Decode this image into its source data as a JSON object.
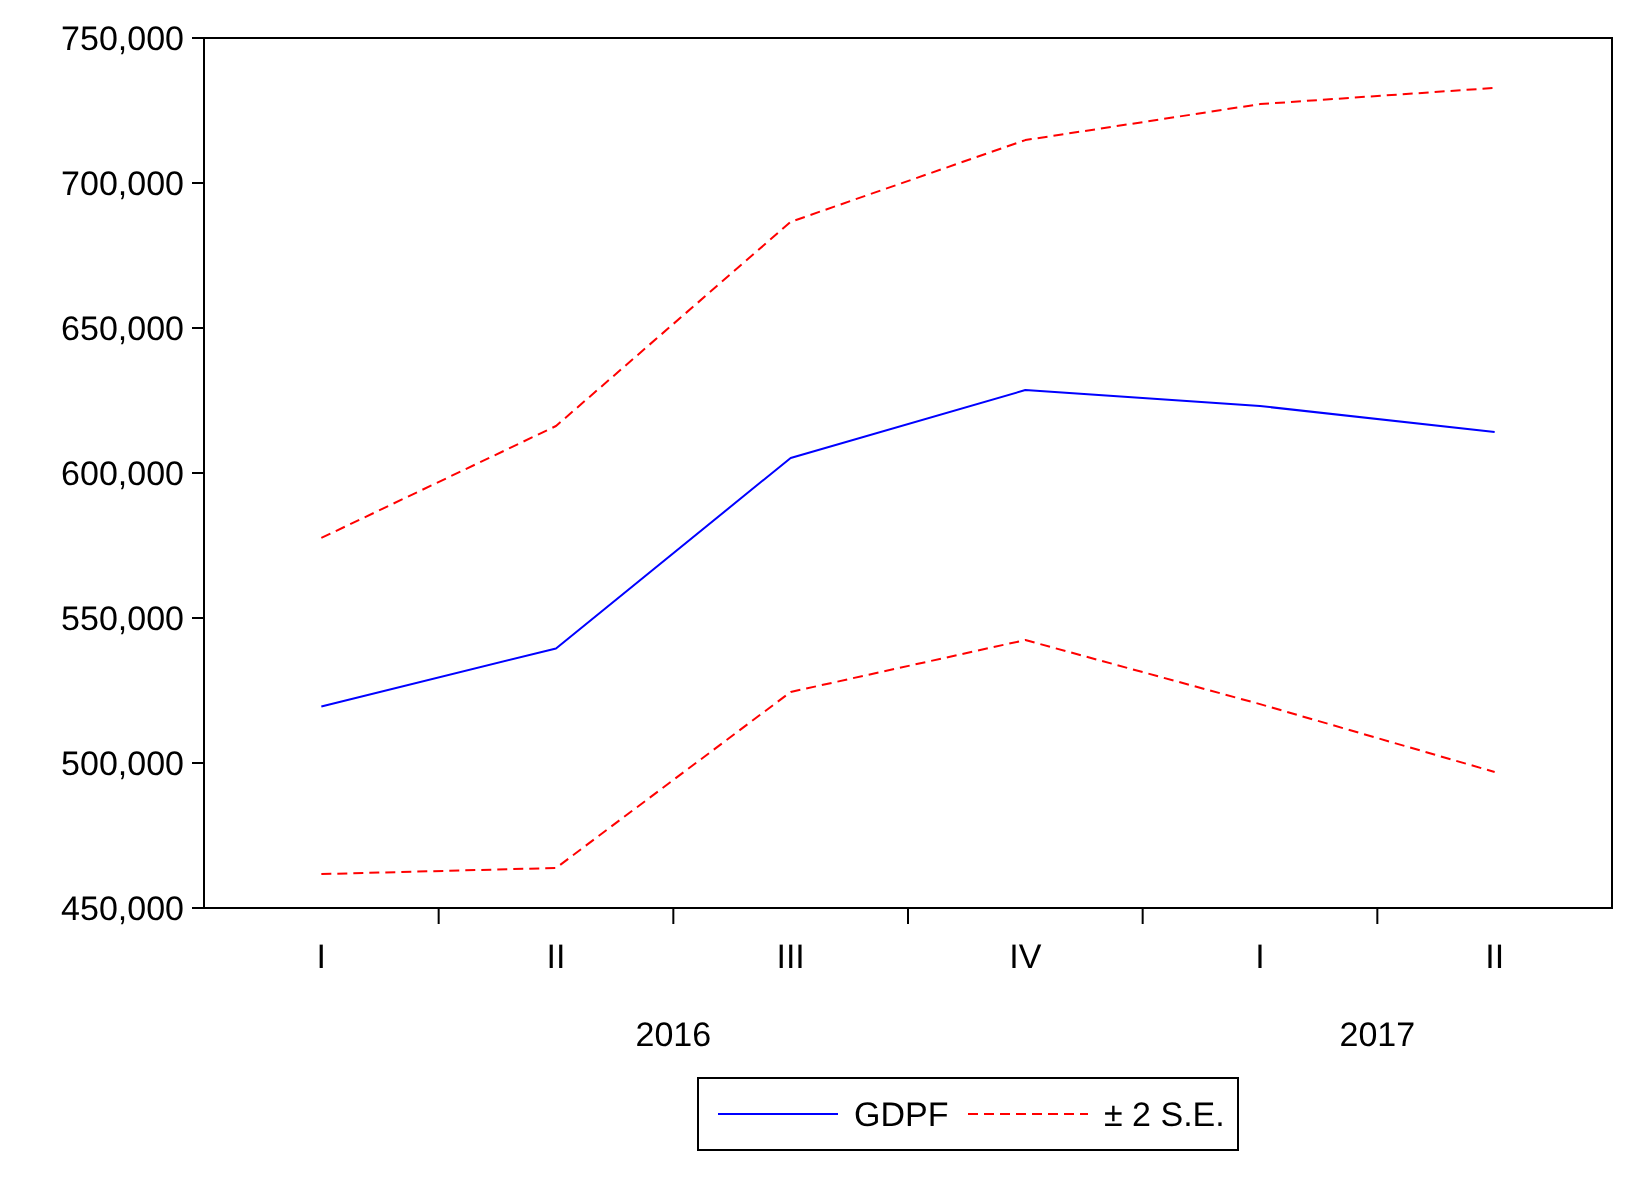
{
  "chart_data": {
    "type": "line",
    "categories": [
      "I",
      "II",
      "III",
      "IV",
      "I",
      "II"
    ],
    "series": [
      {
        "name": "GDPF",
        "color": "#0000ff",
        "line_style": "solid",
        "values": [
          519500,
          539500,
          605200,
          628600,
          623100,
          614100
        ]
      },
      {
        "name": "± 2 S.E.",
        "color": "#ff0000",
        "line_style": "dashed",
        "values": [
          577600,
          616200,
          686600,
          714800,
          727200,
          732800
        ]
      },
      {
        "color": "#ff0000",
        "line_style": "dashed",
        "values": [
          461700,
          463800,
          524500,
          542400,
          520300,
          496900
        ]
      }
    ],
    "ylim": [
      450000,
      750000
    ],
    "yticks": [
      {
        "value": 450000,
        "label": "450,000"
      },
      {
        "value": 500000,
        "label": "500,000"
      },
      {
        "value": 550000,
        "label": "550,000"
      },
      {
        "value": 600000,
        "label": "600,000"
      },
      {
        "value": 650000,
        "label": "650,000"
      },
      {
        "value": 700000,
        "label": "700,000"
      },
      {
        "value": 750000,
        "label": "750,000"
      }
    ],
    "annotations": [
      "2016",
      "2017"
    ],
    "grid": false,
    "legend": "bottom"
  }
}
